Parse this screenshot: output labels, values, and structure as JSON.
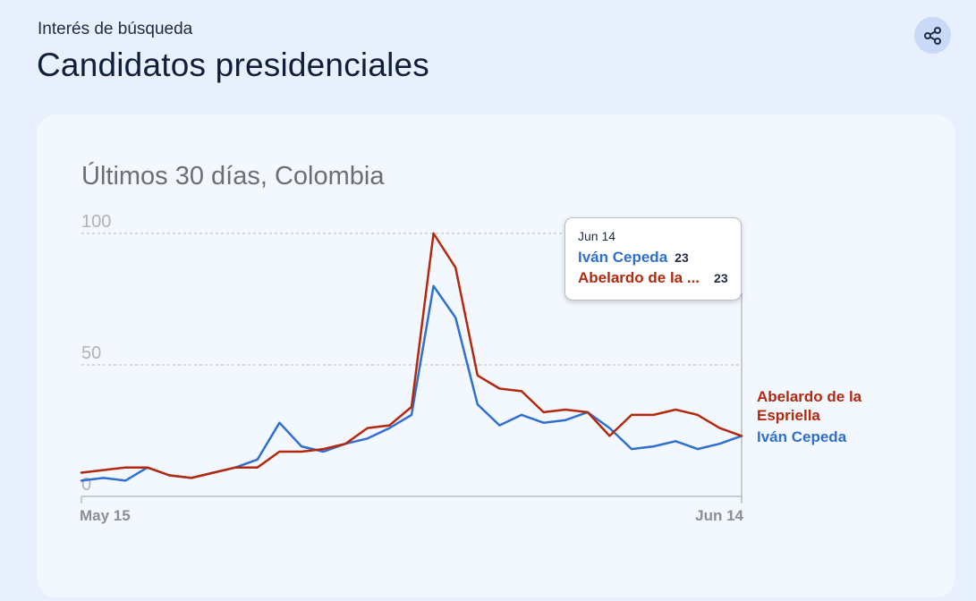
{
  "header": {
    "eyebrow": "Interés de búsqueda",
    "title": "Candidatos presidenciales"
  },
  "card": {
    "subtitle": "Últimos 30 días, Colombia"
  },
  "icons": {
    "share": "share-icon"
  },
  "colors": {
    "blue": "#2f6fd0",
    "red": "#b3290e",
    "axis": "#9aa0a6",
    "grid": "#b5b8bd"
  },
  "tooltip": {
    "date": "Jun 14",
    "rows": [
      {
        "name": "Iván Cepeda",
        "value": "23"
      },
      {
        "name": "Abelardo de la ...",
        "value": "23"
      }
    ]
  },
  "chart_data": {
    "type": "line",
    "ylim": [
      0,
      100
    ],
    "y_ticks": [
      0,
      50,
      100
    ],
    "x_tick_labels": [
      "May 15",
      "Jun 14"
    ],
    "grid": true,
    "series": [
      {
        "name": "Iván Cepeda",
        "label": "Iván Cepeda",
        "color": "#2f6fd0",
        "values": [
          6,
          7,
          6,
          11,
          8,
          7,
          9,
          11,
          14,
          28,
          19,
          17,
          20,
          22,
          26,
          31,
          80,
          68,
          35,
          27,
          31,
          28,
          29,
          32,
          26,
          18,
          19,
          21,
          18,
          20,
          23
        ]
      },
      {
        "name": "Abelardo de la Espriella",
        "label": "Abelardo de la\nEspriella",
        "color": "#b3290e",
        "values": [
          9,
          10,
          11,
          11,
          8,
          7,
          9,
          11,
          11,
          17,
          17,
          18,
          20,
          26,
          27,
          34,
          100,
          87,
          46,
          41,
          40,
          32,
          33,
          32,
          23,
          31,
          31,
          33,
          31,
          26,
          23
        ]
      }
    ]
  }
}
